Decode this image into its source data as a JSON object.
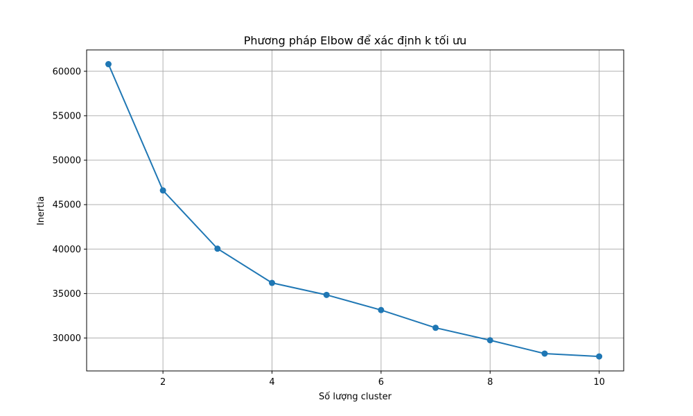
{
  "chart_data": {
    "type": "line",
    "title": "Phương pháp Elbow để xác định k tối ưu",
    "xlabel": "Số lượng cluster",
    "ylabel": "Inertia",
    "x": [
      1,
      2,
      3,
      4,
      5,
      6,
      7,
      8,
      9,
      10
    ],
    "series": [
      {
        "values": [
          60800,
          46600,
          40050,
          36200,
          34850,
          33150,
          31150,
          29750,
          28250,
          27930
        ],
        "color": "#1f77b4",
        "marker": "circle"
      }
    ],
    "xlim": [
      0.6,
      10.45
    ],
    "ylim": [
      26300,
      62400
    ],
    "xticks": [
      2,
      4,
      6,
      8,
      10
    ],
    "yticks": [
      30000,
      35000,
      40000,
      45000,
      50000,
      55000,
      60000
    ],
    "grid": true,
    "legend": "none"
  }
}
